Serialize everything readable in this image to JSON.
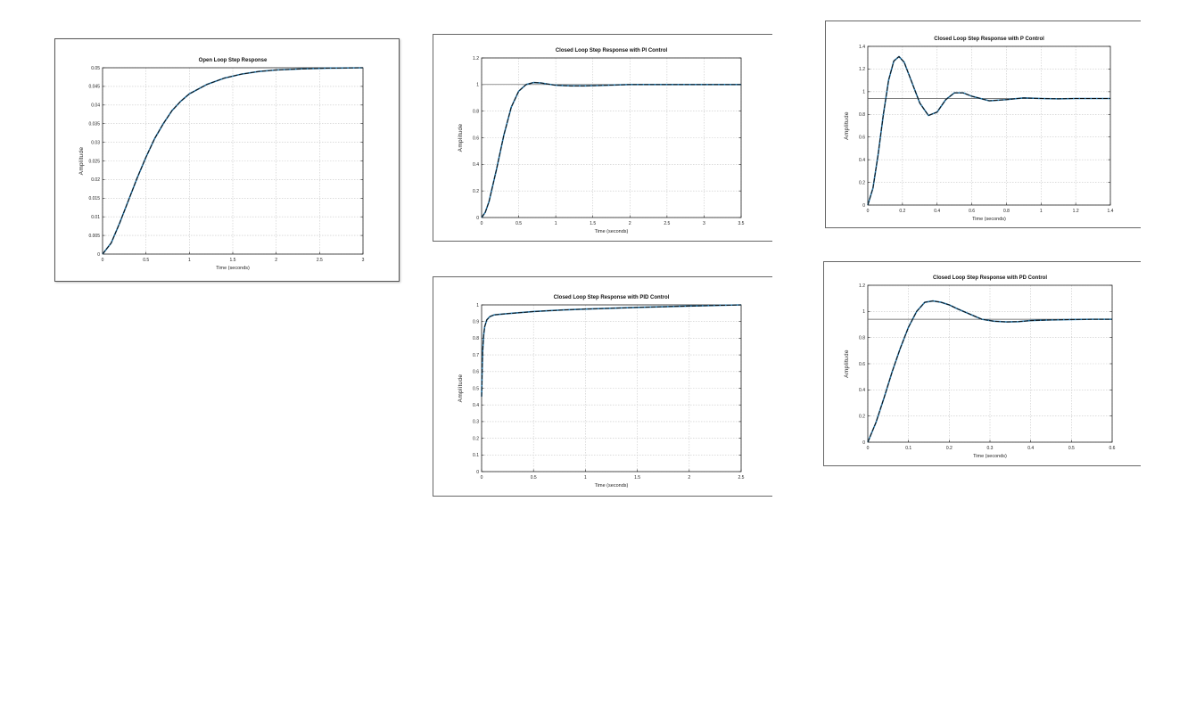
{
  "chart_data": [
    {
      "id": "open",
      "type": "line",
      "title": "Open Loop Step Response",
      "xlabel": "Time (seconds)",
      "ylabel": "Amplitude",
      "xlim": [
        0,
        3
      ],
      "ylim": [
        0,
        0.05
      ],
      "xticks": [
        "0",
        "0.5",
        "1",
        "1.5",
        "2",
        "2.5",
        "3"
      ],
      "yticks": [
        "0",
        "0.005",
        "0.01",
        "0.015",
        "0.02",
        "0.025",
        "0.03",
        "0.035",
        "0.04",
        "0.045",
        "0.05"
      ],
      "grid": true,
      "series": [
        {
          "x": [
            0,
            0.1,
            0.2,
            0.3,
            0.4,
            0.5,
            0.6,
            0.7,
            0.8,
            0.9,
            1.0,
            1.2,
            1.4,
            1.6,
            1.8,
            2.0,
            2.3,
            2.6,
            3.0
          ],
          "y": [
            0,
            0.003,
            0.0085,
            0.0145,
            0.0205,
            0.026,
            0.031,
            0.035,
            0.0385,
            0.041,
            0.043,
            0.0455,
            0.0472,
            0.0483,
            0.049,
            0.0494,
            0.0497,
            0.0499,
            0.05
          ]
        }
      ]
    },
    {
      "id": "pi",
      "type": "line",
      "title": "Closed Loop Step Response with PI Control",
      "xlabel": "Time (seconds)",
      "ylabel": "Amplitude",
      "xlim": [
        0,
        3.5
      ],
      "ylim": [
        0,
        1.2
      ],
      "xticks": [
        "0",
        "0.5",
        "1",
        "1.5",
        "2",
        "2.5",
        "3",
        "3.5"
      ],
      "yticks": [
        "0",
        "0.2",
        "0.4",
        "0.6",
        "0.8",
        "1",
        "1.2"
      ],
      "grid": true,
      "reference": 1,
      "series": [
        {
          "x": [
            0,
            0.05,
            0.1,
            0.2,
            0.3,
            0.4,
            0.5,
            0.6,
            0.7,
            0.8,
            0.9,
            1.0,
            1.2,
            1.4,
            1.6,
            1.8,
            2.0,
            2.5,
            3.0,
            3.5
          ],
          "y": [
            0,
            0.04,
            0.12,
            0.36,
            0.62,
            0.83,
            0.95,
            1.0,
            1.015,
            1.012,
            1.003,
            0.995,
            0.99,
            0.99,
            0.993,
            0.997,
            1.0,
            1.0,
            1.0,
            1.0
          ]
        }
      ]
    },
    {
      "id": "pid",
      "type": "line",
      "title": "Closed Loop Step Response with PID Control",
      "xlabel": "Time (seconds)",
      "ylabel": "Amplitude",
      "xlim": [
        0,
        2.5
      ],
      "ylim": [
        0,
        1
      ],
      "xticks": [
        "0",
        "0.5",
        "1",
        "1.5",
        "2",
        "2.5"
      ],
      "yticks": [
        "0",
        "0.1",
        "0.2",
        "0.3",
        "0.4",
        "0.5",
        "0.6",
        "0.7",
        "0.8",
        "0.9",
        "1"
      ],
      "grid": true,
      "series": [
        {
          "x": [
            0,
            0.005,
            0.01,
            0.02,
            0.03,
            0.05,
            0.08,
            0.12,
            0.2,
            0.3,
            0.5,
            0.8,
            1.0,
            1.5,
            2.0,
            2.5
          ],
          "y": [
            0.45,
            0.6,
            0.72,
            0.82,
            0.87,
            0.91,
            0.93,
            0.94,
            0.945,
            0.95,
            0.96,
            0.97,
            0.975,
            0.985,
            0.993,
            1.0
          ]
        }
      ]
    },
    {
      "id": "p",
      "type": "line",
      "title": "Closed Loop Step Response with P Control",
      "xlabel": "Time (seconds)",
      "ylabel": "Amplitude",
      "xlim": [
        0,
        1.4
      ],
      "ylim": [
        0,
        1.4
      ],
      "xticks": [
        "0",
        "0.2",
        "0.4",
        "0.6",
        "0.8",
        "1",
        "1.2",
        "1.4"
      ],
      "yticks": [
        "0",
        "0.2",
        "0.4",
        "0.6",
        "0.8",
        "1",
        "1.2",
        "1.4"
      ],
      "grid": true,
      "reference": 0.94,
      "series": [
        {
          "x": [
            0,
            0.03,
            0.06,
            0.09,
            0.12,
            0.15,
            0.18,
            0.21,
            0.25,
            0.3,
            0.35,
            0.4,
            0.45,
            0.5,
            0.55,
            0.6,
            0.7,
            0.8,
            0.9,
            1.0,
            1.1,
            1.2,
            1.3,
            1.4
          ],
          "y": [
            0,
            0.15,
            0.45,
            0.8,
            1.1,
            1.27,
            1.31,
            1.26,
            1.1,
            0.9,
            0.79,
            0.82,
            0.93,
            0.99,
            0.99,
            0.96,
            0.92,
            0.93,
            0.945,
            0.94,
            0.937,
            0.94,
            0.94,
            0.94
          ]
        }
      ]
    },
    {
      "id": "pd",
      "type": "line",
      "title": "Closed Loop Step Response with PD Control",
      "xlabel": "Time (seconds)",
      "ylabel": "Amplitude",
      "xlim": [
        0,
        0.6
      ],
      "ylim": [
        0,
        1.2
      ],
      "xticks": [
        "0",
        "0.1",
        "0.2",
        "0.3",
        "0.4",
        "0.5",
        "0.6"
      ],
      "yticks": [
        "0",
        "0.2",
        "0.4",
        "0.6",
        "0.8",
        "1",
        "1.2"
      ],
      "grid": true,
      "reference": 0.94,
      "series": [
        {
          "x": [
            0,
            0.02,
            0.04,
            0.06,
            0.08,
            0.1,
            0.12,
            0.14,
            0.16,
            0.18,
            0.2,
            0.22,
            0.25,
            0.28,
            0.31,
            0.34,
            0.37,
            0.4,
            0.45,
            0.5,
            0.55,
            0.6
          ],
          "y": [
            0,
            0.15,
            0.34,
            0.54,
            0.72,
            0.88,
            1.0,
            1.07,
            1.08,
            1.07,
            1.05,
            1.02,
            0.98,
            0.94,
            0.925,
            0.92,
            0.922,
            0.93,
            0.935,
            0.938,
            0.94,
            0.94
          ]
        }
      ]
    }
  ]
}
